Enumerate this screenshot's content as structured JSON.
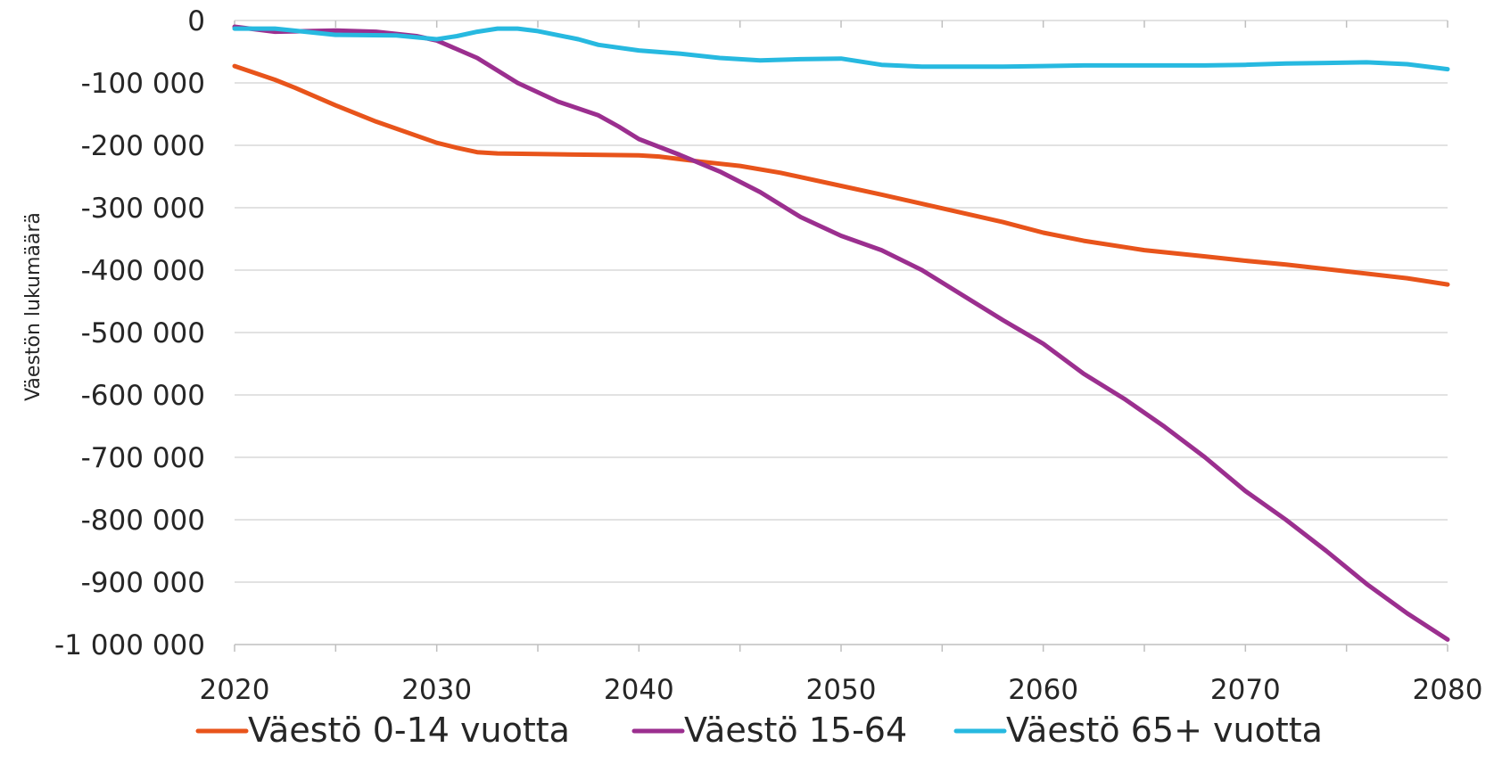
{
  "chart_data": {
    "type": "line",
    "title": "",
    "xlabel": "",
    "ylabel": "Väestön lukumäärä",
    "xlim": [
      2020,
      2080
    ],
    "ylim": [
      -1000000,
      0
    ],
    "x_ticks": [
      2020,
      2030,
      2040,
      2050,
      2060,
      2070,
      2080
    ],
    "x_tick_labels": [
      "2020",
      "2030",
      "2040",
      "2050",
      "2060",
      "2070",
      "2080"
    ],
    "y_ticks": [
      0,
      -100000,
      -200000,
      -300000,
      -400000,
      -500000,
      -600000,
      -700000,
      -800000,
      -900000,
      -1000000
    ],
    "y_tick_labels": [
      "0",
      "-100 000",
      "-200 000",
      "-300 000",
      "-400 000",
      "-500 000",
      "-600 000",
      "-700 000",
      "-800 000",
      "-900 000",
      "-1 000 000"
    ],
    "grid": "horizontal",
    "legend_position": "bottom",
    "series": [
      {
        "name": "Väestö 0-14 vuotta",
        "color": "#E8541B",
        "points": [
          [
            2020,
            -73000
          ],
          [
            2022,
            -95000
          ],
          [
            2023,
            -108000
          ],
          [
            2025,
            -136000
          ],
          [
            2027,
            -162000
          ],
          [
            2030,
            -196000
          ],
          [
            2031,
            -204000
          ],
          [
            2032,
            -211000
          ],
          [
            2033,
            -213000
          ],
          [
            2035,
            -214000
          ],
          [
            2040,
            -216000
          ],
          [
            2041,
            -218000
          ],
          [
            2043,
            -226000
          ],
          [
            2045,
            -233000
          ],
          [
            2047,
            -244000
          ],
          [
            2050,
            -265000
          ],
          [
            2052,
            -279000
          ],
          [
            2055,
            -301000
          ],
          [
            2058,
            -323000
          ],
          [
            2060,
            -340000
          ],
          [
            2062,
            -353000
          ],
          [
            2065,
            -368000
          ],
          [
            2068,
            -378000
          ],
          [
            2070,
            -385000
          ],
          [
            2072,
            -391000
          ],
          [
            2075,
            -402000
          ],
          [
            2078,
            -413000
          ],
          [
            2080,
            -423000
          ]
        ]
      },
      {
        "name": "Väestö 15-64",
        "color": "#9B2F8F",
        "points": [
          [
            2020,
            -10000
          ],
          [
            2022,
            -18000
          ],
          [
            2025,
            -16000
          ],
          [
            2027,
            -18000
          ],
          [
            2029,
            -25000
          ],
          [
            2030,
            -32000
          ],
          [
            2032,
            -60000
          ],
          [
            2034,
            -100000
          ],
          [
            2036,
            -130000
          ],
          [
            2038,
            -152000
          ],
          [
            2039,
            -170000
          ],
          [
            2040,
            -190000
          ],
          [
            2042,
            -215000
          ],
          [
            2044,
            -242000
          ],
          [
            2046,
            -275000
          ],
          [
            2048,
            -315000
          ],
          [
            2050,
            -345000
          ],
          [
            2052,
            -368000
          ],
          [
            2054,
            -400000
          ],
          [
            2056,
            -440000
          ],
          [
            2058,
            -480000
          ],
          [
            2060,
            -518000
          ],
          [
            2062,
            -566000
          ],
          [
            2064,
            -606000
          ],
          [
            2066,
            -651000
          ],
          [
            2068,
            -700000
          ],
          [
            2070,
            -754000
          ],
          [
            2072,
            -800000
          ],
          [
            2074,
            -850000
          ],
          [
            2076,
            -903000
          ],
          [
            2078,
            -950000
          ],
          [
            2080,
            -992000
          ]
        ]
      },
      {
        "name": "Väestö 65+ vuotta",
        "color": "#27B9E0",
        "points": [
          [
            2020,
            -13000
          ],
          [
            2022,
            -13000
          ],
          [
            2025,
            -23000
          ],
          [
            2028,
            -24000
          ],
          [
            2030,
            -30000
          ],
          [
            2031,
            -25000
          ],
          [
            2032,
            -18000
          ],
          [
            2033,
            -13000
          ],
          [
            2034,
            -13000
          ],
          [
            2035,
            -17000
          ],
          [
            2037,
            -30000
          ],
          [
            2038,
            -39000
          ],
          [
            2040,
            -48000
          ],
          [
            2042,
            -53000
          ],
          [
            2044,
            -60000
          ],
          [
            2046,
            -64000
          ],
          [
            2048,
            -62000
          ],
          [
            2050,
            -61000
          ],
          [
            2052,
            -71000
          ],
          [
            2054,
            -74000
          ],
          [
            2056,
            -74000
          ],
          [
            2058,
            -74000
          ],
          [
            2060,
            -73000
          ],
          [
            2062,
            -72000
          ],
          [
            2064,
            -72000
          ],
          [
            2066,
            -72000
          ],
          [
            2068,
            -72000
          ],
          [
            2070,
            -71000
          ],
          [
            2072,
            -69000
          ],
          [
            2074,
            -68000
          ],
          [
            2076,
            -67000
          ],
          [
            2078,
            -70000
          ],
          [
            2080,
            -78000
          ]
        ]
      }
    ]
  }
}
